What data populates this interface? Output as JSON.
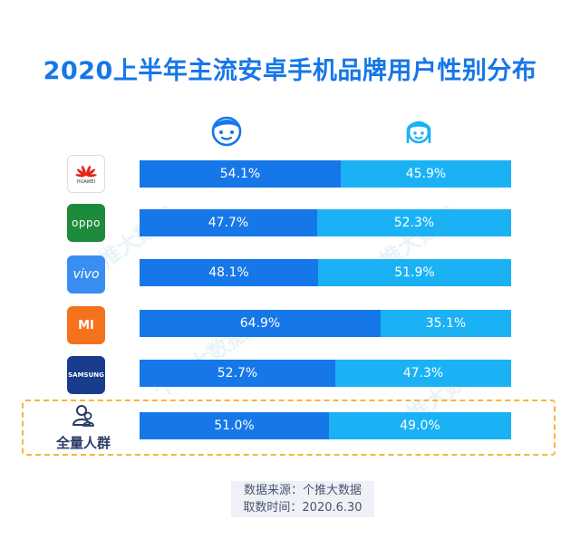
{
  "title": "2020上半年主流安卓手机品牌用户性别分布",
  "chart_data": {
    "type": "bar",
    "stacked": true,
    "orientation": "horizontal",
    "title": "2020上半年主流安卓手机品牌用户性别分布",
    "categories": [
      "HUAWEI",
      "oppo",
      "vivo",
      "MI",
      "SAMSUNG",
      "全量人群"
    ],
    "series": [
      {
        "name": "male",
        "values": [
          54.1,
          47.7,
          48.1,
          64.9,
          52.7,
          51.0
        ]
      },
      {
        "name": "female",
        "values": [
          45.9,
          52.3,
          51.9,
          35.1,
          47.3,
          49.0
        ]
      }
    ],
    "labels": {
      "male": [
        "54.1%",
        "47.7%",
        "48.1%",
        "64.9%",
        "52.7%",
        "51.0%"
      ],
      "female": [
        "45.9%",
        "52.3%",
        "51.9%",
        "35.1%",
        "47.3%",
        "49.0%"
      ]
    },
    "legend_icons": [
      "male-face-icon",
      "female-face-icon"
    ],
    "colors": {
      "male": "#1677e8",
      "female": "#1ab2f5"
    }
  },
  "brand_logos": {
    "huawei": "HUAWEI",
    "oppo": "oppo",
    "vivo": "vivo",
    "mi": "MI",
    "samsung": "SAMSUNG"
  },
  "crowd_label": "全量人群",
  "source": {
    "line1": "数据来源：个推大数据",
    "line2": "取数时间：2020.6.30"
  },
  "watermark": "个推大数据"
}
